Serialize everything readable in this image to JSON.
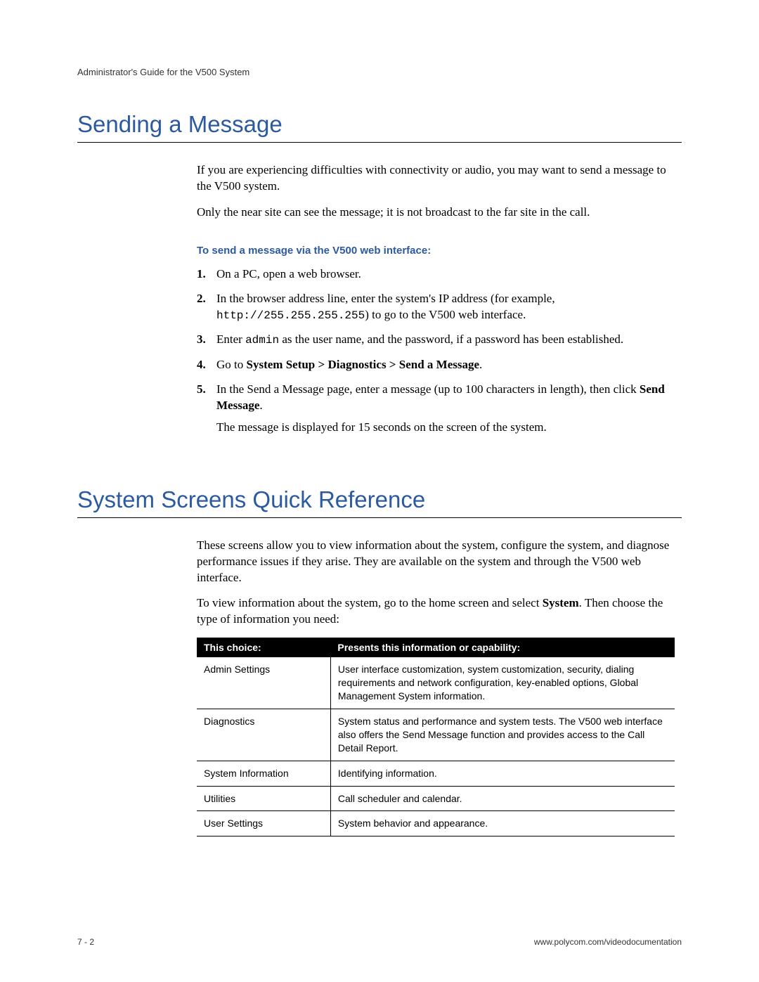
{
  "header": {
    "running": "Administrator's Guide for the V500 System"
  },
  "section1": {
    "heading": "Sending a Message",
    "intro1": "If you are experiencing difficulties with connectivity or audio, you may want to send a message to the V500 system.",
    "intro2": "Only the near site can see the message; it is not broadcast to the far site in the call.",
    "subheading": "To send a message via the V500 web interface:",
    "steps": {
      "s1": "On a PC, open a web browser.",
      "s2a": "In the browser address line, enter the system's IP address (for example, ",
      "s2_code": "http://255.255.255.255",
      "s2b": ") to go to the V500 web interface.",
      "s3a": "Enter ",
      "s3_code": "admin",
      "s3b": " as the user name, and the password, if a password has been established.",
      "s4a": "Go to ",
      "s4_bold": "System Setup > Diagnostics > Send a Message",
      "s4b": ".",
      "s5a": "In the Send a Message page, enter a message (up to 100 characters in length), then click ",
      "s5_bold": "Send Message",
      "s5b": ".",
      "s5_cont": "The message is displayed for 15 seconds on the screen of the system."
    }
  },
  "section2": {
    "heading": "System Screens Quick Reference",
    "intro1": "These screens allow you to view information about the system, configure the system, and diagnose performance issues if they arise. They are available on the system and through the V500 web interface.",
    "intro2a": "To view information about the system, go to the home screen and select ",
    "intro2_bold": "System",
    "intro2b": ". Then choose the type of information you need:",
    "table": {
      "head_choice": "This choice:",
      "head_info": "Presents this information or capability:",
      "rows": [
        {
          "choice": "Admin Settings",
          "info": "User interface customization, system customization, security, dialing requirements and network configuration, key-enabled options, Global Management System information."
        },
        {
          "choice": "Diagnostics",
          "info": "System status and performance and system tests. The V500 web interface also offers the Send Message function and provides access to the Call Detail Report."
        },
        {
          "choice": "System Information",
          "info": "Identifying information."
        },
        {
          "choice": "Utilities",
          "info": "Call scheduler and calendar."
        },
        {
          "choice": "User Settings",
          "info": "System behavior and appearance."
        }
      ]
    }
  },
  "footer": {
    "page": "7 - 2",
    "url": "www.polycom.com/videodocumentation"
  },
  "colors": {
    "heading_blue": "#2c5aa0",
    "text_black": "#000000",
    "bg_white": "#ffffff",
    "header_gray": "#333333"
  },
  "typography": {
    "heading_fontsize_pt": 25,
    "body_fontsize_pt": 13,
    "subheading_fontsize_pt": 11,
    "table_fontsize_pt": 10.5,
    "footer_fontsize_pt": 9
  }
}
